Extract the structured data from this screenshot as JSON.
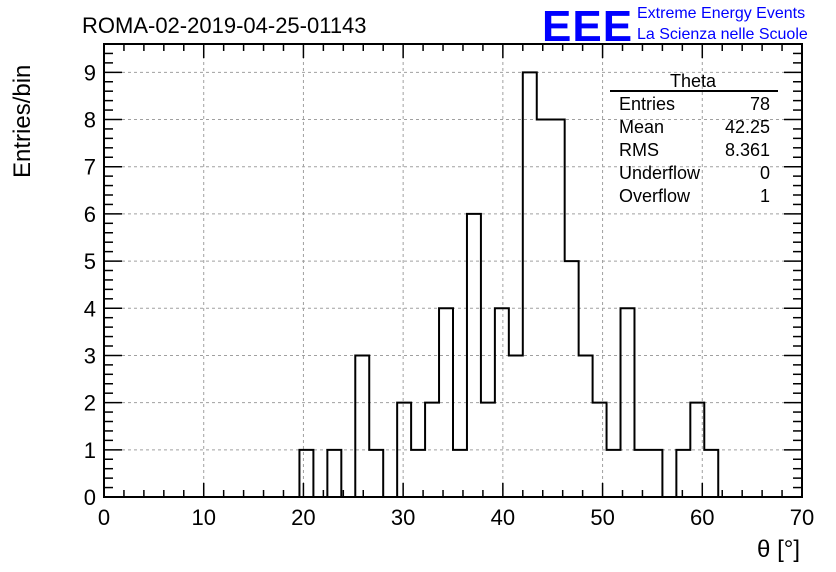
{
  "header": {
    "run_title": "ROMA-02-2019-04-25-01143",
    "logo_text": "EEE",
    "logo_line1": "Extreme Energy Events",
    "logo_line2": "La Scienza nelle Scuole"
  },
  "stats": {
    "name": "Theta",
    "rows": [
      {
        "label": "Entries",
        "value": "78"
      },
      {
        "label": "Mean",
        "value": "42.25"
      },
      {
        "label": "RMS",
        "value": "8.361"
      },
      {
        "label": "Underflow",
        "value": "0"
      },
      {
        "label": "Overflow",
        "value": "1"
      }
    ]
  },
  "colors": {
    "logo": "#0000ff",
    "histogram": "#000000",
    "grid": "#a0a0a0"
  },
  "chart_data": {
    "type": "bar",
    "style": "step-histogram",
    "title": "ROMA-02-2019-04-25-01143",
    "xlabel": "θ [°]",
    "ylabel": "Entries/bin",
    "xlim": [
      0,
      70
    ],
    "ylim": [
      0,
      9.6
    ],
    "grid": true,
    "xticks": [
      "0",
      "10",
      "20",
      "30",
      "40",
      "50",
      "60",
      "70"
    ],
    "yticks": [
      "0",
      "1",
      "2",
      "3",
      "4",
      "5",
      "6",
      "7",
      "8",
      "9"
    ],
    "bin_edges": [
      0,
      1.4,
      2.8,
      4.2,
      5.6,
      7,
      8.4,
      9.8,
      11.2,
      12.6,
      14,
      15.4,
      16.8,
      18.2,
      19.6,
      21,
      22.4,
      23.8,
      25.2,
      26.6,
      28,
      29.4,
      30.8,
      32.2,
      33.6,
      35,
      36.4,
      37.8,
      39.2,
      40.6,
      42,
      43.4,
      44.8,
      46.2,
      47.6,
      49,
      50.4,
      51.8,
      53.2,
      54.6,
      56,
      57.4,
      58.8,
      60.2,
      61.6,
      63,
      64.4,
      65.8,
      67.2,
      68.6,
      70
    ],
    "values": [
      0,
      0,
      0,
      0,
      0,
      0,
      0,
      0,
      0,
      0,
      0,
      0,
      0,
      0,
      1,
      0,
      1,
      0,
      3,
      1,
      0,
      2,
      1,
      2,
      4,
      1,
      6,
      2,
      4,
      3,
      9,
      8,
      8,
      5,
      3,
      2,
      1,
      4,
      1,
      1,
      0,
      1,
      2,
      1,
      0,
      0,
      0,
      0,
      0,
      0
    ]
  }
}
